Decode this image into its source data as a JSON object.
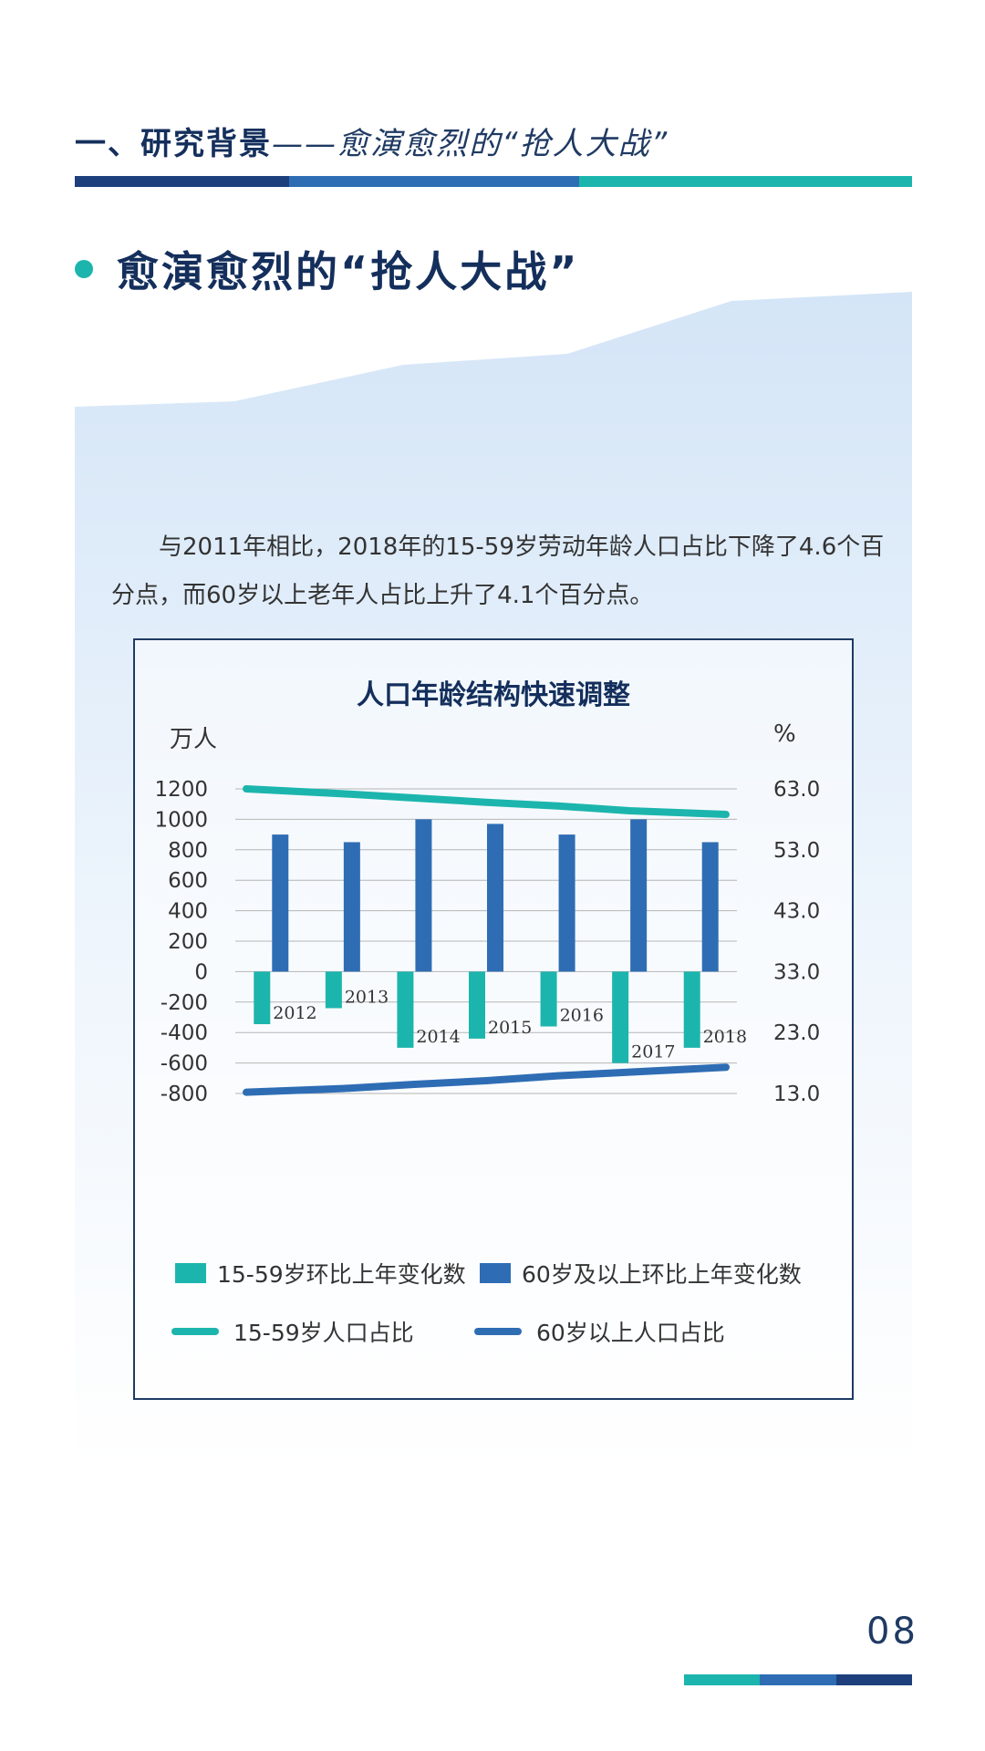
{
  "header": {
    "title": "一、研究背景",
    "subtitle": "——愈演愈烈的“抢人大战”"
  },
  "colors": {
    "teal": "#1cb5ad",
    "blue": "#2e6db4",
    "navy": "#1d3f7c",
    "dark": "#142f5c"
  },
  "section": {
    "title": "愈演愈烈的“抢人大战”"
  },
  "paragraph": "与2011年相比，2018年的15-59岁劳动年龄人口占比下降了4.6个百分点，而60岁以上老年人占比上升了4.1个百分点。",
  "chart_data": {
    "type": "bar",
    "title": "人口年龄结构快速调整",
    "ylabel_left": "万人",
    "ylabel_right": "%",
    "categories": [
      "2012",
      "2013",
      "2014",
      "2015",
      "2016",
      "2017",
      "2018"
    ],
    "left_axis": {
      "ylim": [
        -800,
        1200
      ],
      "ticks": [
        "1200",
        "1000",
        "800",
        "600",
        "400",
        "200",
        "0",
        "-200",
        "-400",
        "-600",
        "-800"
      ]
    },
    "right_axis": {
      "ylim": [
        13.0,
        63.0
      ],
      "ticks": [
        "63.0",
        "53.0",
        "43.0",
        "33.0",
        "23.0",
        "13.0"
      ]
    },
    "series": [
      {
        "name": "15-59岁环比上年变化数",
        "kind": "bar",
        "axis": "left",
        "color": "#1cb5ad",
        "values": [
          -345,
          -240,
          -500,
          -440,
          -360,
          -600,
          -500
        ]
      },
      {
        "name": "60岁及以上环比上年变化数",
        "kind": "bar",
        "axis": "left",
        "color": "#2e6db4",
        "values": [
          900,
          850,
          1000,
          970,
          900,
          1000,
          850
        ]
      },
      {
        "name": "15-59岁人口占比",
        "kind": "line",
        "axis": "right",
        "color": "#1cb5ad",
        "values": [
          63.0,
          62.2,
          61.5,
          60.8,
          60.2,
          59.4,
          58.8
        ]
      },
      {
        "name": "60岁以上人口占比",
        "kind": "line",
        "axis": "right",
        "color": "#2e6db4",
        "values": [
          13.2,
          13.8,
          14.5,
          15.1,
          15.9,
          16.5,
          17.3
        ]
      }
    ],
    "legend": [
      "15-59岁环比上年变化数",
      "60岁及以上环比上年变化数",
      "15-59岁人口占比",
      "60岁以上人口占比"
    ],
    "gridlines": true
  },
  "page_number": "08"
}
